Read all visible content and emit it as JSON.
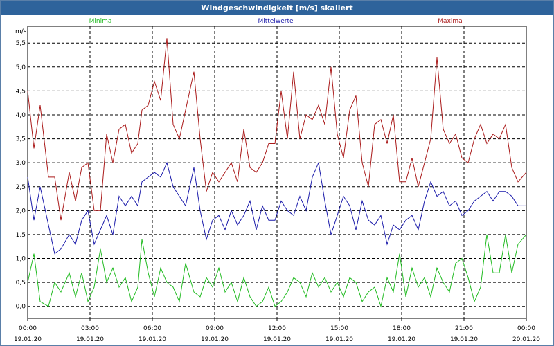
{
  "window": {
    "title": "Windgeschwindigkeit [m/s] skaliert"
  },
  "chart_data": {
    "type": "line",
    "ylabel": "m/s",
    "ylim": [
      -0.25,
      5.85
    ],
    "yticks": [
      0.0,
      0.5,
      1.0,
      1.5,
      2.0,
      2.5,
      3.0,
      3.5,
      4.0,
      4.5,
      5.0,
      5.5
    ],
    "ytick_labels": [
      "0,0",
      "0,5",
      "1,0",
      "1,5",
      "2,0",
      "2,5",
      "3,0",
      "3,5",
      "4,0",
      "4,5",
      "5,0",
      "5,5"
    ],
    "xlim_hours": [
      0,
      24
    ],
    "xticks": [
      {
        "time": "00:00",
        "date": "19.01.20",
        "hour": 0
      },
      {
        "time": "03:00",
        "date": "19.01.20",
        "hour": 3
      },
      {
        "time": "06:00",
        "date": "19.01.20",
        "hour": 6
      },
      {
        "time": "09:00",
        "date": "19.01.20",
        "hour": 9
      },
      {
        "time": "12:00",
        "date": "19.01.20",
        "hour": 12
      },
      {
        "time": "15:00",
        "date": "19.01.20",
        "hour": 15
      },
      {
        "time": "18:00",
        "date": "19.01.20",
        "hour": 18
      },
      {
        "time": "21:00",
        "date": "19.01.20",
        "hour": 21
      },
      {
        "time": "00:00",
        "date": "20.01.20",
        "hour": 24
      }
    ],
    "grid": true,
    "series": [
      {
        "name": "Minima",
        "color": "#22bb22",
        "x": [
          0,
          0.3,
          0.6,
          1,
          1.3,
          1.6,
          2,
          2.3,
          2.6,
          2.9,
          3.2,
          3.5,
          3.8,
          4.1,
          4.4,
          4.7,
          5,
          5.3,
          5.5,
          5.8,
          6.1,
          6.4,
          6.7,
          7,
          7.3,
          7.6,
          8,
          8.3,
          8.6,
          8.9,
          9.2,
          9.5,
          9.8,
          10.1,
          10.4,
          10.7,
          11,
          11.3,
          11.6,
          11.9,
          12.2,
          12.5,
          12.8,
          13.1,
          13.4,
          13.7,
          14,
          14.3,
          14.6,
          14.9,
          15.2,
          15.5,
          15.8,
          16.1,
          16.4,
          16.7,
          17,
          17.3,
          17.6,
          17.9,
          18.2,
          18.5,
          18.8,
          19.1,
          19.4,
          19.7,
          20,
          20.3,
          20.6,
          20.9,
          21.2,
          21.5,
          21.8,
          22.1,
          22.4,
          22.7,
          23,
          23.3,
          23.6,
          24
        ],
        "y": [
          0.5,
          1.1,
          0.1,
          0.0,
          0.5,
          0.3,
          0.7,
          0.2,
          0.7,
          0.1,
          0.4,
          1.2,
          0.5,
          0.8,
          0.4,
          0.6,
          0.1,
          0.4,
          1.4,
          0.7,
          0.2,
          0.8,
          0.5,
          0.4,
          0.1,
          0.9,
          0.3,
          0.2,
          0.6,
          0.4,
          0.8,
          0.3,
          0.5,
          0.1,
          0.6,
          0.2,
          0.0,
          0.1,
          0.4,
          0.0,
          0.1,
          0.3,
          0.6,
          0.5,
          0.2,
          0.7,
          0.4,
          0.6,
          0.3,
          0.5,
          0.2,
          0.6,
          0.5,
          0.1,
          0.3,
          0.4,
          0.0,
          0.6,
          0.3,
          1.1,
          0.2,
          0.8,
          0.4,
          0.6,
          0.2,
          0.8,
          0.5,
          0.3,
          0.9,
          1.0,
          0.6,
          0.1,
          0.4,
          1.5,
          0.7,
          0.7,
          1.5,
          0.7,
          1.3,
          1.5
        ]
      },
      {
        "name": "Mittelwerte",
        "color": "#1a1aaa",
        "x": [
          0,
          0.3,
          0.6,
          1,
          1.3,
          1.6,
          2,
          2.3,
          2.6,
          2.9,
          3.2,
          3.5,
          3.8,
          4.1,
          4.4,
          4.7,
          5,
          5.3,
          5.5,
          5.8,
          6.1,
          6.4,
          6.7,
          7,
          7.3,
          7.6,
          8,
          8.3,
          8.6,
          8.9,
          9.2,
          9.5,
          9.8,
          10.1,
          10.4,
          10.7,
          11,
          11.3,
          11.6,
          11.9,
          12.2,
          12.5,
          12.8,
          13.1,
          13.4,
          13.7,
          14,
          14.3,
          14.6,
          14.9,
          15.2,
          15.5,
          15.8,
          16.1,
          16.4,
          16.7,
          17,
          17.3,
          17.6,
          17.9,
          18.2,
          18.5,
          18.8,
          19.1,
          19.4,
          19.7,
          20,
          20.3,
          20.6,
          20.9,
          21.2,
          21.5,
          21.8,
          22.1,
          22.4,
          22.7,
          23,
          23.3,
          23.6,
          24
        ],
        "y": [
          2.7,
          1.8,
          2.5,
          1.7,
          1.1,
          1.2,
          1.5,
          1.3,
          1.8,
          2.0,
          1.3,
          1.6,
          1.9,
          1.5,
          2.3,
          2.1,
          2.3,
          2.1,
          2.6,
          2.7,
          2.8,
          2.7,
          3.0,
          2.5,
          2.3,
          2.1,
          2.9,
          2.0,
          1.4,
          1.8,
          1.9,
          1.6,
          2.0,
          1.7,
          1.9,
          2.2,
          1.6,
          2.1,
          1.8,
          1.8,
          2.2,
          2.0,
          1.9,
          2.3,
          2.0,
          2.7,
          3.0,
          2.2,
          1.5,
          1.9,
          2.3,
          2.1,
          1.6,
          2.2,
          1.8,
          1.7,
          1.9,
          1.3,
          1.7,
          1.6,
          1.8,
          1.9,
          1.6,
          2.2,
          2.6,
          2.3,
          2.4,
          2.1,
          2.2,
          1.9,
          2.0,
          2.2,
          2.3,
          2.4,
          2.2,
          2.4,
          2.4,
          2.3,
          2.1,
          2.1
        ]
      },
      {
        "name": "Maxima",
        "color": "#aa1a1a",
        "x": [
          0,
          0.3,
          0.6,
          1,
          1.3,
          1.6,
          2,
          2.3,
          2.6,
          2.9,
          3.2,
          3.5,
          3.8,
          4.1,
          4.4,
          4.7,
          5,
          5.3,
          5.5,
          5.8,
          6.1,
          6.4,
          6.7,
          7,
          7.3,
          7.6,
          8,
          8.3,
          8.6,
          8.9,
          9.2,
          9.5,
          9.8,
          10.1,
          10.4,
          10.7,
          11,
          11.3,
          11.6,
          11.9,
          12.2,
          12.5,
          12.8,
          13.1,
          13.4,
          13.7,
          14,
          14.3,
          14.6,
          14.9,
          15.2,
          15.5,
          15.8,
          16.1,
          16.4,
          16.7,
          17,
          17.3,
          17.6,
          17.9,
          18.2,
          18.5,
          18.8,
          19.1,
          19.4,
          19.7,
          20,
          20.3,
          20.6,
          20.9,
          21.2,
          21.5,
          21.8,
          22.1,
          22.4,
          22.7,
          23,
          23.3,
          23.6,
          24
        ],
        "y": [
          4.5,
          3.3,
          4.2,
          2.7,
          2.7,
          1.8,
          2.8,
          2.2,
          2.9,
          3.0,
          2.0,
          2.0,
          3.6,
          3.0,
          3.7,
          3.8,
          3.2,
          3.4,
          4.1,
          4.2,
          4.7,
          4.3,
          5.6,
          3.8,
          3.5,
          4.1,
          4.9,
          3.5,
          2.4,
          2.8,
          2.6,
          2.8,
          3.0,
          2.6,
          3.7,
          2.9,
          2.8,
          3.0,
          3.4,
          3.4,
          4.5,
          3.5,
          4.9,
          3.5,
          4.0,
          3.9,
          4.2,
          3.8,
          5.0,
          3.6,
          3.1,
          4.1,
          4.4,
          3.0,
          2.5,
          3.8,
          3.9,
          3.4,
          4.0,
          2.6,
          2.6,
          3.1,
          2.5,
          3.0,
          3.5,
          5.2,
          3.7,
          3.4,
          3.6,
          3.1,
          3.0,
          3.5,
          3.8,
          3.4,
          3.6,
          3.5,
          3.8,
          2.9,
          2.6,
          2.8
        ]
      }
    ]
  }
}
